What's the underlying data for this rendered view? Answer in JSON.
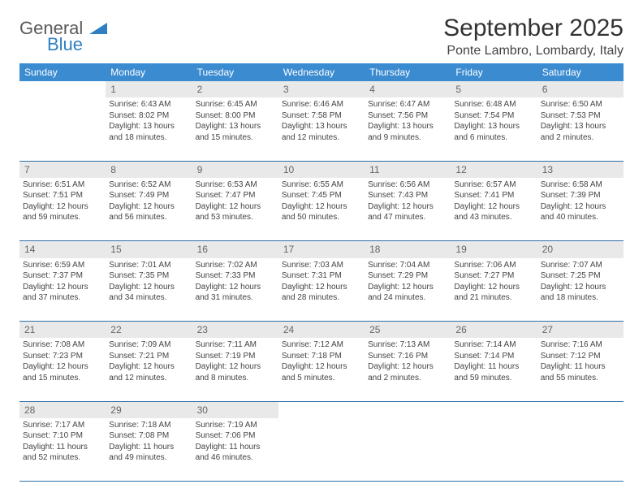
{
  "logo": {
    "text1": "General",
    "text2": "Blue"
  },
  "title": "September 2025",
  "location": "Ponte Lambro, Lombardy, Italy",
  "colors": {
    "header_bg": "#3b8bd0",
    "header_fg": "#ffffff",
    "daynum_bg": "#e9e9e9",
    "daynum_fg": "#666666",
    "rule": "#2f6fa8",
    "body_text": "#444444",
    "logo_gray": "#5a5a5a",
    "logo_blue": "#2f7fc2"
  },
  "weekdays": [
    "Sunday",
    "Monday",
    "Tuesday",
    "Wednesday",
    "Thursday",
    "Friday",
    "Saturday"
  ],
  "weeks": [
    {
      "nums": [
        "",
        "1",
        "2",
        "3",
        "4",
        "5",
        "6"
      ],
      "cells": [
        [],
        [
          "Sunrise: 6:43 AM",
          "Sunset: 8:02 PM",
          "Daylight: 13 hours",
          "and 18 minutes."
        ],
        [
          "Sunrise: 6:45 AM",
          "Sunset: 8:00 PM",
          "Daylight: 13 hours",
          "and 15 minutes."
        ],
        [
          "Sunrise: 6:46 AM",
          "Sunset: 7:58 PM",
          "Daylight: 13 hours",
          "and 12 minutes."
        ],
        [
          "Sunrise: 6:47 AM",
          "Sunset: 7:56 PM",
          "Daylight: 13 hours",
          "and 9 minutes."
        ],
        [
          "Sunrise: 6:48 AM",
          "Sunset: 7:54 PM",
          "Daylight: 13 hours",
          "and 6 minutes."
        ],
        [
          "Sunrise: 6:50 AM",
          "Sunset: 7:53 PM",
          "Daylight: 13 hours",
          "and 2 minutes."
        ]
      ]
    },
    {
      "nums": [
        "7",
        "8",
        "9",
        "10",
        "11",
        "12",
        "13"
      ],
      "cells": [
        [
          "Sunrise: 6:51 AM",
          "Sunset: 7:51 PM",
          "Daylight: 12 hours",
          "and 59 minutes."
        ],
        [
          "Sunrise: 6:52 AM",
          "Sunset: 7:49 PM",
          "Daylight: 12 hours",
          "and 56 minutes."
        ],
        [
          "Sunrise: 6:53 AM",
          "Sunset: 7:47 PM",
          "Daylight: 12 hours",
          "and 53 minutes."
        ],
        [
          "Sunrise: 6:55 AM",
          "Sunset: 7:45 PM",
          "Daylight: 12 hours",
          "and 50 minutes."
        ],
        [
          "Sunrise: 6:56 AM",
          "Sunset: 7:43 PM",
          "Daylight: 12 hours",
          "and 47 minutes."
        ],
        [
          "Sunrise: 6:57 AM",
          "Sunset: 7:41 PM",
          "Daylight: 12 hours",
          "and 43 minutes."
        ],
        [
          "Sunrise: 6:58 AM",
          "Sunset: 7:39 PM",
          "Daylight: 12 hours",
          "and 40 minutes."
        ]
      ]
    },
    {
      "nums": [
        "14",
        "15",
        "16",
        "17",
        "18",
        "19",
        "20"
      ],
      "cells": [
        [
          "Sunrise: 6:59 AM",
          "Sunset: 7:37 PM",
          "Daylight: 12 hours",
          "and 37 minutes."
        ],
        [
          "Sunrise: 7:01 AM",
          "Sunset: 7:35 PM",
          "Daylight: 12 hours",
          "and 34 minutes."
        ],
        [
          "Sunrise: 7:02 AM",
          "Sunset: 7:33 PM",
          "Daylight: 12 hours",
          "and 31 minutes."
        ],
        [
          "Sunrise: 7:03 AM",
          "Sunset: 7:31 PM",
          "Daylight: 12 hours",
          "and 28 minutes."
        ],
        [
          "Sunrise: 7:04 AM",
          "Sunset: 7:29 PM",
          "Daylight: 12 hours",
          "and 24 minutes."
        ],
        [
          "Sunrise: 7:06 AM",
          "Sunset: 7:27 PM",
          "Daylight: 12 hours",
          "and 21 minutes."
        ],
        [
          "Sunrise: 7:07 AM",
          "Sunset: 7:25 PM",
          "Daylight: 12 hours",
          "and 18 minutes."
        ]
      ]
    },
    {
      "nums": [
        "21",
        "22",
        "23",
        "24",
        "25",
        "26",
        "27"
      ],
      "cells": [
        [
          "Sunrise: 7:08 AM",
          "Sunset: 7:23 PM",
          "Daylight: 12 hours",
          "and 15 minutes."
        ],
        [
          "Sunrise: 7:09 AM",
          "Sunset: 7:21 PM",
          "Daylight: 12 hours",
          "and 12 minutes."
        ],
        [
          "Sunrise: 7:11 AM",
          "Sunset: 7:19 PM",
          "Daylight: 12 hours",
          "and 8 minutes."
        ],
        [
          "Sunrise: 7:12 AM",
          "Sunset: 7:18 PM",
          "Daylight: 12 hours",
          "and 5 minutes."
        ],
        [
          "Sunrise: 7:13 AM",
          "Sunset: 7:16 PM",
          "Daylight: 12 hours",
          "and 2 minutes."
        ],
        [
          "Sunrise: 7:14 AM",
          "Sunset: 7:14 PM",
          "Daylight: 11 hours",
          "and 59 minutes."
        ],
        [
          "Sunrise: 7:16 AM",
          "Sunset: 7:12 PM",
          "Daylight: 11 hours",
          "and 55 minutes."
        ]
      ]
    },
    {
      "nums": [
        "28",
        "29",
        "30",
        "",
        "",
        "",
        ""
      ],
      "cells": [
        [
          "Sunrise: 7:17 AM",
          "Sunset: 7:10 PM",
          "Daylight: 11 hours",
          "and 52 minutes."
        ],
        [
          "Sunrise: 7:18 AM",
          "Sunset: 7:08 PM",
          "Daylight: 11 hours",
          "and 49 minutes."
        ],
        [
          "Sunrise: 7:19 AM",
          "Sunset: 7:06 PM",
          "Daylight: 11 hours",
          "and 46 minutes."
        ],
        [],
        [],
        [],
        []
      ]
    }
  ]
}
